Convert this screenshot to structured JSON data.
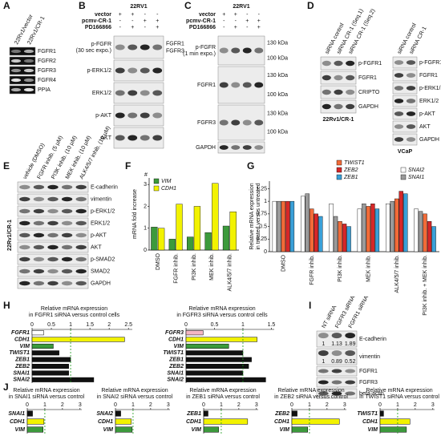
{
  "letters": [
    "A",
    "B",
    "C",
    "D",
    "E",
    "F",
    "G",
    "H",
    "I",
    "J"
  ],
  "blots": {
    "A": {
      "lanes": [
        "22Rv1/vector",
        "22Rv1/CR-1"
      ],
      "rows": [
        {
          "label": "FGFR1"
        },
        {
          "label": "FGFR2"
        },
        {
          "label": "FGFR3"
        },
        {
          "label": "FGFR4"
        },
        {
          "label": "PPIA"
        }
      ]
    },
    "B": {
      "cell_line": "22RV1",
      "treatments": [
        {
          "name": "vector",
          "signs": [
            "+",
            "+",
            "-",
            "-"
          ]
        },
        {
          "name": "pcmv-CR-1",
          "signs": [
            "-",
            "-",
            "+",
            "+"
          ]
        },
        {
          "name": "PD166866",
          "signs": [
            "-",
            "+",
            "-",
            "+"
          ]
        }
      ],
      "rows": [
        {
          "label": "p-FGFR",
          "note": "(30 sec expo.)",
          "sub": [
            "FGFR1",
            "FGFR3"
          ]
        },
        {
          "label": "p-ERK1/2"
        },
        {
          "label": "ERK1/2"
        },
        {
          "label": "p-AKT"
        },
        {
          "label": "AKT"
        }
      ]
    },
    "C": {
      "cell_line": "22RV1",
      "treatments": [
        {
          "name": "vector",
          "signs": [
            "+",
            "+",
            "-",
            "-"
          ]
        },
        {
          "name": "pcmv-CR-1",
          "signs": [
            "-",
            "-",
            "+",
            "+"
          ]
        },
        {
          "name": "PD166866",
          "signs": [
            "-",
            "+",
            "-",
            "+"
          ]
        }
      ],
      "rows": [
        {
          "label": "p-FGFR",
          "note": "(1 min expo.)",
          "markers": [
            "130 kDa",
            "100 kDa"
          ]
        },
        {
          "label": "FGFR1",
          "markers": [
            "130 kDa",
            "100 kDa"
          ]
        },
        {
          "label": "FGFR3",
          "markers": [
            "130 kDa",
            "100 kDa"
          ]
        },
        {
          "label": "GAPDH"
        }
      ]
    },
    "D1": {
      "lanes": [
        "siRNA control",
        "siRNA CR-1 (Seq.1)",
        "siRNA CR-1 (Seq.2)"
      ],
      "rows": [
        {
          "label": "p-FGFR1"
        },
        {
          "label": "FGFR1"
        },
        {
          "label": "CRIPTO"
        },
        {
          "label": "GAPDH"
        }
      ],
      "caption": "22Rv1/CR-1"
    },
    "D2": {
      "lanes": [
        "siRNA control",
        "siRNA CR-1"
      ],
      "rows": [
        {
          "label": "p-FGFR1"
        },
        {
          "label": "FGFR1"
        },
        {
          "label": "p-ERK1/2"
        },
        {
          "label": "ERK1/2"
        },
        {
          "label": "p-AKT"
        },
        {
          "label": "AKT"
        },
        {
          "label": "GAPDH"
        }
      ],
      "caption": "VCaP"
    },
    "E": {
      "lanes": [
        "vehicle (DMSO)",
        "FGFR inhib. (5 µM)",
        "PI3K inhib. (10 µM)",
        "MEK inhib. (10 µM)",
        "ALK4/5/7 inhib. (10 µM)"
      ],
      "rows": [
        {
          "label": "E-cadherin"
        },
        {
          "label": "vimentin"
        },
        {
          "label": "p-ERK1/2"
        },
        {
          "label": "ERK1/2"
        },
        {
          "label": "p-AKT"
        },
        {
          "label": "AKT"
        },
        {
          "label": "p-SMAD2"
        },
        {
          "label": "SMAD2"
        },
        {
          "label": "GAPDH"
        }
      ],
      "caption": "22Rv1/CR-1"
    },
    "I": {
      "lanes": [
        "NT siRNA",
        "FGFR3 siRNA",
        "FGFR1 siRNA"
      ],
      "rows": [
        {
          "label": "E-cadherin",
          "quant": [
            1,
            1.13,
            1.89
          ]
        },
        {
          "label": "vimentin",
          "quant": [
            1,
            0.89,
            0.52
          ]
        },
        {
          "label": "FGFR1"
        },
        {
          "label": "FGFR3"
        },
        {
          "label": "beta-actin"
        }
      ]
    }
  },
  "chart_data": [
    {
      "type": "bar",
      "ylabel": "mRNA fold increase",
      "annotation": "#",
      "categories": [
        "DMSO",
        "FGFR inhib.",
        "PI3K inhib.",
        "MEK inhib.",
        "ALK4/5/7 inhib."
      ],
      "series": [
        {
          "name": "VIM",
          "color": "#3c9a3c",
          "values": [
            1.05,
            0.5,
            0.6,
            0.8,
            1.1
          ]
        },
        {
          "name": "CDH1",
          "color": "#f2f200",
          "values": [
            1.0,
            2.1,
            2.0,
            3.05,
            1.75
          ]
        }
      ],
      "ylim": [
        0,
        3.3
      ],
      "yticks": [
        0,
        1,
        2,
        3
      ]
    },
    {
      "type": "bar",
      "ylabel": [
        "Relative mRNA expression",
        "in treated versus untreated"
      ],
      "categories": [
        "DMSO",
        "FGFR inhib.",
        "PI3K inhib.",
        "MEK inhib.",
        "ALK4/5/7 inhib.",
        "PI3K inhib. + MEK inhib."
      ],
      "series": [
        {
          "name": "SNAI2",
          "color": "#ffffff",
          "values": [
            1,
            1.1,
            0.95,
            0.85,
            0.95,
            0.85
          ]
        },
        {
          "name": "SNAI1",
          "color": "#9a9a9a",
          "values": [
            1,
            1.15,
            0.7,
            0.95,
            1.0,
            0.8
          ]
        },
        {
          "name": "TWIST1",
          "color": "#f26b38",
          "values": [
            1,
            0.85,
            0.6,
            0.9,
            1.05,
            0.75
          ]
        },
        {
          "name": "ZEB2",
          "color": "#d62728",
          "values": [
            1,
            0.75,
            0.55,
            0.95,
            1.2,
            0.6
          ]
        },
        {
          "name": "ZEB1",
          "color": "#3aa0d8",
          "values": [
            1,
            0.7,
            0.5,
            0.85,
            1.15,
            0.5
          ]
        }
      ],
      "ylim": [
        0,
        1.4
      ],
      "yticks": [
        0,
        0.25,
        0.5,
        0.75,
        1,
        1.25
      ]
    },
    {
      "type": "barh",
      "title": [
        "Relative mRNA expression",
        "in FGFR1 siRNA versus control cells"
      ],
      "categories": [
        "FGFR1",
        "CDH1",
        "VIM",
        "TWIST1",
        "ZEB1",
        "ZEB2",
        "SNAI1",
        "SNAI2"
      ],
      "values": [
        0.3,
        2.4,
        0.55,
        0.7,
        1.0,
        0.95,
        0.95,
        1.6
      ],
      "colors": [
        "#ffffff",
        "#f2f200",
        "#3c9a3c",
        "#111111",
        "#111111",
        "#111111",
        "#111111",
        "#111111"
      ],
      "xlim": [
        0,
        2.6
      ],
      "xticks": [
        0,
        0.5,
        1,
        1.5,
        2,
        2.5
      ],
      "reference_line": 1
    },
    {
      "type": "barh",
      "title": [
        "Relative mRNA expression",
        "in FGFR3 siRNA versus control cells"
      ],
      "categories": [
        "FGFR3",
        "CDH1",
        "VIM",
        "TWIST1",
        "ZEB1",
        "ZEB2",
        "SNAI1",
        "SNAI2"
      ],
      "values": [
        0.3,
        1.25,
        0.75,
        1.0,
        1.15,
        1.1,
        1.0,
        1.4
      ],
      "colors": [
        "#f4b6c2",
        "#f2f200",
        "#3c9a3c",
        "#111111",
        "#111111",
        "#111111",
        "#111111",
        "#111111"
      ],
      "xlim": [
        0,
        1.55
      ],
      "xticks": [
        0,
        0.5,
        1,
        1.5
      ],
      "reference_line": 1
    },
    {
      "type": "barh",
      "title": [
        "Relative mRNA expression",
        "in SNAI1 siRNA versus control"
      ],
      "categories": [
        "SNAI1",
        "CDH1",
        "VIM"
      ],
      "values": [
        0.3,
        0.95,
        0.9
      ],
      "colors": [
        "#111111",
        "#f2f200",
        "#3c9a3c"
      ],
      "xlim": [
        0,
        3.1
      ],
      "xticks": [
        0,
        1,
        2,
        3
      ],
      "reference_line": 1
    },
    {
      "type": "barh",
      "title": [
        "Relative mRNA expression",
        "in SNAI2 siRNA versus control"
      ],
      "categories": [
        "SNAI2",
        "CDH1",
        "VIM"
      ],
      "values": [
        0.3,
        0.9,
        0.95
      ],
      "colors": [
        "#111111",
        "#f2f200",
        "#3c9a3c"
      ],
      "xlim": [
        0,
        3.1
      ],
      "xticks": [
        0,
        1,
        2,
        3
      ],
      "reference_line": 1
    },
    {
      "type": "barh",
      "title": [
        "Relative mRNA expression",
        "in ZEB1 siRNA versus control"
      ],
      "categories": [
        "ZEB1",
        "CDH1",
        "VIM"
      ],
      "values": [
        0.25,
        2.5,
        0.85
      ],
      "colors": [
        "#111111",
        "#f2f200",
        "#3c9a3c"
      ],
      "xlim": [
        0,
        3.1
      ],
      "xticks": [
        0,
        1,
        2,
        3
      ],
      "reference_line": 1
    },
    {
      "type": "barh",
      "title": [
        "Relative mRNA expression",
        "in ZEB2 siRNA versus control"
      ],
      "categories": [
        "ZEB2",
        "CDH1",
        "VIM"
      ],
      "values": [
        0.3,
        2.7,
        0.9
      ],
      "colors": [
        "#111111",
        "#f2f200",
        "#3c9a3c"
      ],
      "xlim": [
        0,
        3.1
      ],
      "xticks": [
        0,
        1,
        2,
        3
      ],
      "reference_line": 1
    },
    {
      "type": "barh",
      "title": [
        "Relative mRNA expression",
        "in TWIST1 siRNA versus control"
      ],
      "categories": [
        "TWIST1",
        "CDH1",
        "VIM"
      ],
      "values": [
        0.2,
        1.7,
        1.5
      ],
      "colors": [
        "#111111",
        "#f2f200",
        "#3c9a3c"
      ],
      "xlim": [
        0,
        3.1
      ],
      "xticks": [
        0,
        1,
        2,
        3
      ],
      "reference_line": 1
    }
  ]
}
